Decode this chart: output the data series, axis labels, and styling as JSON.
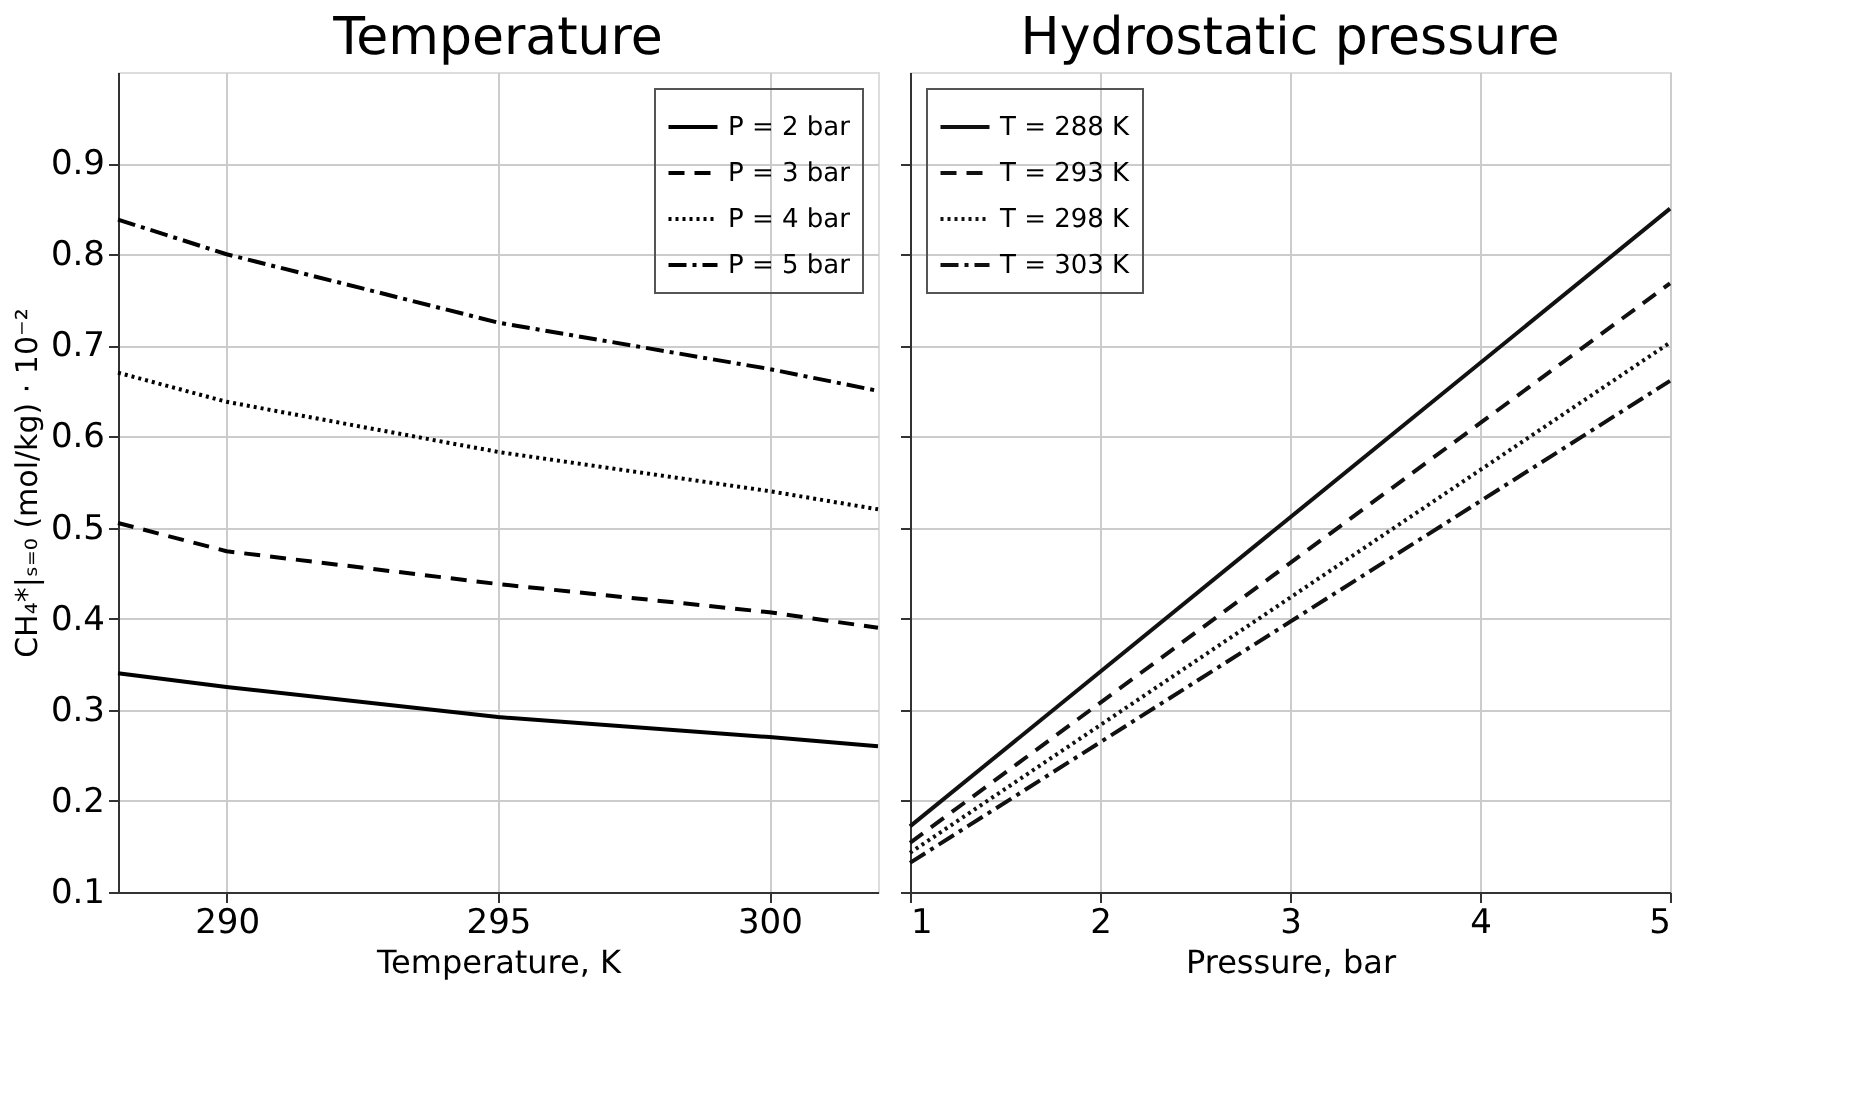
{
  "chart_data": [
    {
      "type": "line",
      "title": "Temperature",
      "xlabel": "Temperature, K",
      "ylabel": "CH₄*|ₛ₌₀ (mol/kg) · 10⁻²",
      "xlim": [
        288,
        302
      ],
      "xticks": [
        290,
        295,
        300
      ],
      "ylim": [
        0.1,
        1.0
      ],
      "yticks": [
        0.1,
        0.2,
        0.3,
        0.4,
        0.5,
        0.6,
        0.7,
        0.8,
        0.9
      ],
      "grid": true,
      "legend": "top right",
      "x": [
        288,
        290,
        295,
        300,
        302
      ],
      "series": [
        {
          "name": "P = 2 bar",
          "color": "#000000",
          "line_style": "solid",
          "values": [
            0.34,
            0.325,
            0.292,
            0.27,
            0.26
          ]
        },
        {
          "name": "P = 3 bar",
          "color": "#000000",
          "line_style": "dashed",
          "values": [
            0.505,
            0.474,
            0.438,
            0.407,
            0.39
          ]
        },
        {
          "name": "P = 4 bar",
          "color": "#000000",
          "line_style": "dotted",
          "values": [
            0.67,
            0.638,
            0.583,
            0.54,
            0.52
          ]
        },
        {
          "name": "P = 5 bar",
          "color": "#000000",
          "line_style": "dashdot",
          "values": [
            0.838,
            0.8,
            0.725,
            0.674,
            0.65
          ]
        }
      ]
    },
    {
      "type": "line",
      "title": "Hydrostatic pressure",
      "xlabel": "Pressure, bar",
      "xlim": [
        1,
        5
      ],
      "xticks": [
        1,
        2,
        3,
        4,
        5
      ],
      "ylim": [
        0.1,
        1.0
      ],
      "yticks": [
        0.1,
        0.2,
        0.3,
        0.4,
        0.5,
        0.6,
        0.7,
        0.8,
        0.9
      ],
      "grid": true,
      "legend": "top left",
      "tick_labels": "x",
      "x": [
        1,
        5
      ],
      "series": [
        {
          "name": "T = 288 K",
          "color": "#111111",
          "line_style": "solid",
          "values": [
            0.172,
            0.85
          ]
        },
        {
          "name": "T = 293 K",
          "color": "#111111",
          "line_style": "dashed",
          "values": [
            0.154,
            0.768
          ]
        },
        {
          "name": "T = 298 K",
          "color": "#111111",
          "line_style": "dotted",
          "values": [
            0.143,
            0.703
          ]
        },
        {
          "name": "T = 303 K",
          "color": "#111111",
          "line_style": "dashdot",
          "values": [
            0.132,
            0.661
          ]
        }
      ]
    }
  ]
}
